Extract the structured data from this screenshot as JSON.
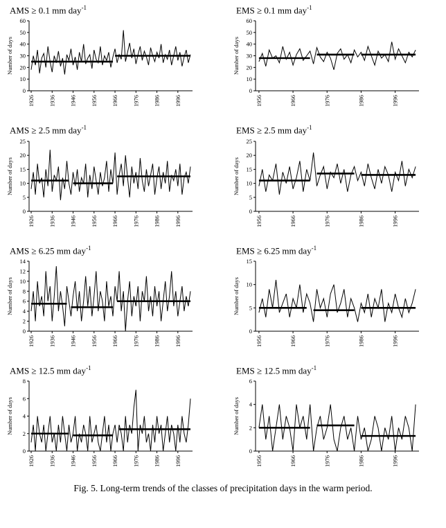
{
  "figure": {
    "caption": "Fig. 5. Long-term trends of the classes of precipitation days in the warm period."
  },
  "chart_data": [
    {
      "type": "line",
      "title": "AMS ≥ 0.1 mm day",
      "title_sup": "-1",
      "ylabel": "Number of days",
      "x_start": 1926,
      "xlim": [
        1925,
        2003
      ],
      "ylim": [
        0,
        60
      ],
      "yticks": [
        0,
        10,
        20,
        30,
        40,
        50,
        60
      ],
      "xticks": [
        1926,
        1936,
        1946,
        1956,
        1966,
        1976,
        1986,
        1996
      ],
      "values": [
        18,
        30,
        22,
        35,
        15,
        28,
        32,
        20,
        38,
        25,
        16,
        30,
        24,
        34,
        21,
        28,
        14,
        31,
        26,
        36,
        22,
        29,
        18,
        33,
        25,
        40,
        23,
        28,
        31,
        19,
        35,
        27,
        24,
        38,
        22,
        30,
        26,
        33,
        20,
        29,
        36,
        24,
        31,
        27,
        52,
        25,
        33,
        41,
        28,
        36,
        23,
        31,
        38,
        26,
        34,
        29,
        22,
        37,
        30,
        25,
        33,
        28,
        40,
        24,
        31,
        27,
        35,
        22,
        30,
        38,
        26,
        33,
        21,
        29,
        35,
        24,
        31
      ],
      "trend_segments": [
        {
          "x1": 1926,
          "x2": 1965,
          "y": 25
        },
        {
          "x1": 1966,
          "x2": 2002,
          "y": 30
        }
      ]
    },
    {
      "type": "line",
      "title": "EMS ≥ 0.1 mm day",
      "title_sup": "-1",
      "ylabel": "Number of days",
      "x_start": 1956,
      "xlim": [
        1955,
        2003
      ],
      "ylim": [
        0,
        60
      ],
      "yticks": [
        0,
        10,
        20,
        30,
        40,
        50,
        60
      ],
      "xticks": [
        1956,
        1966,
        1976,
        1986,
        1996
      ],
      "values": [
        25,
        32,
        21,
        35,
        28,
        30,
        24,
        38,
        27,
        33,
        22,
        31,
        36,
        26,
        30,
        34,
        23,
        37,
        29,
        25,
        33,
        28,
        18,
        32,
        36,
        27,
        31,
        24,
        35,
        29,
        33,
        26,
        38,
        30,
        22,
        34,
        28,
        31,
        25,
        42,
        27,
        36,
        30,
        24,
        33,
        29,
        35
      ],
      "trend_segments": [
        {
          "x1": 1956,
          "x2": 1971,
          "y": 28
        },
        {
          "x1": 1973,
          "x2": 1984,
          "y": 31
        },
        {
          "x1": 1986,
          "x2": 2002,
          "y": 31
        }
      ]
    },
    {
      "type": "line",
      "title": "AMS ≥ 2.5 mm day",
      "title_sup": "-1",
      "ylabel": "Number of days",
      "x_start": 1926,
      "xlim": [
        1925,
        2003
      ],
      "ylim": [
        0,
        25
      ],
      "yticks": [
        0,
        5,
        10,
        15,
        20,
        25
      ],
      "xticks": [
        1926,
        1936,
        1946,
        1956,
        1966,
        1976,
        1986,
        1996
      ],
      "values": [
        8,
        14,
        6,
        17,
        10,
        12,
        5,
        15,
        9,
        22,
        7,
        13,
        11,
        16,
        4,
        12,
        8,
        18,
        10,
        6,
        14,
        9,
        15,
        7,
        12,
        10,
        17,
        5,
        13,
        8,
        16,
        11,
        6,
        14,
        9,
        12,
        18,
        7,
        15,
        10,
        21,
        6,
        13,
        17,
        9,
        20,
        12,
        5,
        16,
        10,
        14,
        8,
        19,
        11,
        7,
        15,
        9,
        13,
        17,
        6,
        12,
        16,
        8,
        14,
        10,
        18,
        7,
        13,
        11,
        15,
        9,
        17,
        6,
        12,
        14,
        10,
        16
      ],
      "trend_segments": [
        {
          "x1": 1926,
          "x2": 1944,
          "y": 11
        },
        {
          "x1": 1946,
          "x2": 1965,
          "y": 10
        },
        {
          "x1": 1967,
          "x2": 2002,
          "y": 12.5
        }
      ]
    },
    {
      "type": "line",
      "title": "EMS ≥ 2.5 mm day",
      "title_sup": "-1",
      "ylabel": "Number of days",
      "x_start": 1956,
      "xlim": [
        1955,
        2003
      ],
      "ylim": [
        0,
        25
      ],
      "yticks": [
        0,
        5,
        10,
        15,
        20,
        25
      ],
      "xticks": [
        1956,
        1966,
        1976,
        1986,
        1996
      ],
      "values": [
        9,
        15,
        7,
        13,
        11,
        17,
        6,
        14,
        10,
        16,
        8,
        12,
        18,
        7,
        15,
        11,
        21,
        9,
        13,
        16,
        8,
        14,
        12,
        17,
        10,
        15,
        7,
        13,
        16,
        11,
        14,
        9,
        17,
        12,
        8,
        15,
        10,
        16,
        13,
        7,
        14,
        11,
        18,
        9,
        15,
        12,
        16
      ],
      "trend_segments": [
        {
          "x1": 1956,
          "x2": 1971,
          "y": 11
        },
        {
          "x1": 1973,
          "x2": 1984,
          "y": 13.5
        },
        {
          "x1": 1986,
          "x2": 2002,
          "y": 13
        }
      ]
    },
    {
      "type": "line",
      "title": "AMS ≥ 6.25 mm day",
      "title_sup": "-1",
      "ylabel": "Number of days",
      "x_start": 1926,
      "xlim": [
        1925,
        2003
      ],
      "ylim": [
        0,
        14
      ],
      "yticks": [
        0,
        2,
        4,
        6,
        8,
        10,
        12,
        14
      ],
      "xticks": [
        1926,
        1936,
        1946,
        1956,
        1966,
        1976,
        1986,
        1996
      ],
      "values": [
        4,
        8,
        2,
        10,
        5,
        7,
        3,
        12,
        6,
        9,
        2,
        7,
        13,
        4,
        8,
        5,
        1,
        9,
        6,
        3,
        7,
        10,
        4,
        8,
        2,
        6,
        11,
        5,
        9,
        3,
        7,
        12,
        4,
        8,
        6,
        2,
        10,
        5,
        7,
        3,
        9,
        6,
        12,
        4,
        8,
        0,
        6,
        10,
        3,
        7,
        5,
        9,
        2,
        8,
        6,
        11,
        4,
        7,
        3,
        9,
        5,
        8,
        2,
        6,
        10,
        4,
        7,
        12,
        5,
        8,
        3,
        6,
        9,
        4,
        7,
        5,
        8
      ],
      "trend_segments": [
        {
          "x1": 1926,
          "x2": 1943,
          "y": 5.5
        },
        {
          "x1": 1945,
          "x2": 1965,
          "y": 4.8
        },
        {
          "x1": 1967,
          "x2": 2002,
          "y": 6
        }
      ]
    },
    {
      "type": "line",
      "title": "EMS ≥ 6.25 mm day",
      "title_sup": "-1",
      "ylabel": "Number of days",
      "x_start": 1956,
      "xlim": [
        1955,
        2003
      ],
      "ylim": [
        0,
        15
      ],
      "yticks": [
        0,
        5,
        10,
        15
      ],
      "xticks": [
        1956,
        1966,
        1976,
        1986,
        1996
      ],
      "values": [
        4,
        7,
        3,
        9,
        5,
        11,
        4,
        6,
        8,
        3,
        7,
        5,
        10,
        4,
        8,
        6,
        2,
        9,
        5,
        7,
        3,
        8,
        10,
        4,
        6,
        9,
        3,
        7,
        5,
        2,
        6,
        4,
        8,
        3,
        7,
        5,
        9,
        2,
        6,
        4,
        8,
        5,
        3,
        7,
        4,
        6,
        9
      ],
      "trend_segments": [
        {
          "x1": 1956,
          "x2": 1970,
          "y": 5
        },
        {
          "x1": 1972,
          "x2": 1984,
          "y": 4.5
        },
        {
          "x1": 1986,
          "x2": 2002,
          "y": 5
        }
      ]
    },
    {
      "type": "line",
      "title": "AMS ≥ 12.5 mm day",
      "title_sup": "-1",
      "ylabel": "Number of days",
      "x_start": 1926,
      "xlim": [
        1925,
        2003
      ],
      "ylim": [
        0,
        8
      ],
      "yticks": [
        0,
        2,
        4,
        6,
        8
      ],
      "xticks": [
        1926,
        1936,
        1946,
        1956,
        1966,
        1976,
        1986,
        1996
      ],
      "values": [
        1,
        3,
        0,
        4,
        2,
        1,
        3,
        0,
        2,
        4,
        1,
        2,
        0,
        3,
        1,
        4,
        2,
        0,
        3,
        1,
        2,
        4,
        0,
        2,
        1,
        3,
        2,
        0,
        4,
        1,
        2,
        3,
        1,
        0,
        2,
        4,
        1,
        3,
        0,
        2,
        3,
        1,
        3,
        2,
        0,
        4,
        1,
        3,
        2,
        5,
        7,
        0,
        3,
        2,
        4,
        1,
        2,
        0,
        3,
        1,
        4,
        2,
        3,
        0,
        2,
        4,
        1,
        3,
        2,
        0,
        3,
        1,
        4,
        2,
        1,
        3,
        6
      ],
      "trend_segments": [
        {
          "x1": 1926,
          "x2": 1944,
          "y": 2
        },
        {
          "x1": 1946,
          "x2": 1965,
          "y": 1.8
        },
        {
          "x1": 1968,
          "x2": 2002,
          "y": 2.5
        }
      ]
    },
    {
      "type": "line",
      "title": "EMS ≥ 12.5 mm day",
      "title_sup": "-1",
      "ylabel": "Number of days",
      "x_start": 1956,
      "xlim": [
        1955,
        2003
      ],
      "ylim": [
        0,
        6
      ],
      "yticks": [
        0,
        2,
        4,
        6
      ],
      "xticks": [
        1956,
        1966,
        1976,
        1986,
        1996
      ],
      "values": [
        2,
        4,
        1,
        3,
        0,
        2,
        4,
        1,
        3,
        2,
        0,
        4,
        2,
        3,
        1,
        4,
        0,
        2,
        3,
        1,
        2,
        4,
        1,
        0,
        2,
        3,
        1,
        2,
        0,
        3,
        1,
        2,
        0,
        1,
        3,
        2,
        0,
        2,
        1,
        3,
        0,
        2,
        1,
        3,
        2,
        0,
        4
      ],
      "trend_segments": [
        {
          "x1": 1956,
          "x2": 1971,
          "y": 2
        },
        {
          "x1": 1973,
          "x2": 1984,
          "y": 2.2
        },
        {
          "x1": 1986,
          "x2": 2002,
          "y": 1.3
        }
      ]
    }
  ]
}
